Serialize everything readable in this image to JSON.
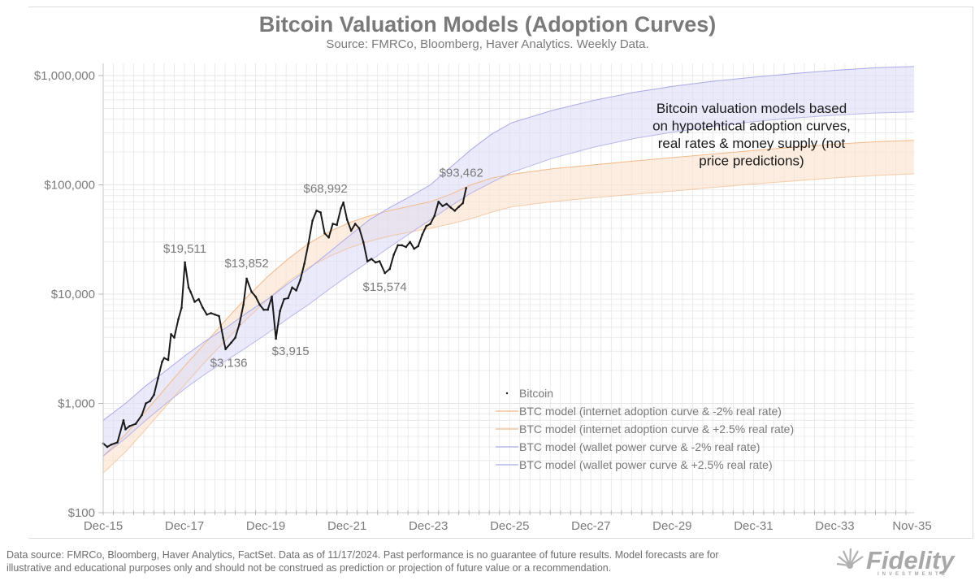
{
  "header": {
    "title": "Bitcoin Valuation Models (Adoption Curves)",
    "subtitle": "Source: FMRCo, Bloomberg, Haver Analytics. Weekly Data."
  },
  "footer": {
    "text_line1": "Data source: FMRCo, Bloomberg, Haver Analytics, FactSet. Data as of 11/17/2024. Past performance is no guarantee of future results. Model forecasts are for",
    "text_line2": "illustrative and educational purposes only and should not be construed as prediction or projection of future value or a recommendation.",
    "logo_text": "Fidelity",
    "logo_subtext": "INVESTMENTS",
    "logo_icon": "sunburst-icon"
  },
  "colors": {
    "bitcoin": "#1a1a1a",
    "internet_band_fill": "#fbe3cf",
    "internet_line": "#f3b98a",
    "wallet_band_fill": "#dcdcf8",
    "wallet_line": "#a9a9e8",
    "grid": "#e6e6e6",
    "axis_text": "#7a7a7a"
  },
  "chart_data": {
    "type": "line",
    "title": "Bitcoin Valuation Models (Adoption Curves)",
    "subtitle": "Source: FMRCo, Bloomberg, Haver Analytics. Weekly Data.",
    "xlabel": "",
    "ylabel": "",
    "yscale": "log",
    "ylim": [
      100,
      1000000
    ],
    "xlim": [
      2015.95,
      2035.9
    ],
    "grid": true,
    "legend_position": "bottom-center",
    "y_ticks": [
      {
        "value": 100,
        "label": "$100"
      },
      {
        "value": 1000,
        "label": "$1,000"
      },
      {
        "value": 10000,
        "label": "$10,000"
      },
      {
        "value": 100000,
        "label": "$100,000"
      },
      {
        "value": 1000000,
        "label": "$1,000,000"
      }
    ],
    "x_ticks": [
      {
        "value": 2015.95,
        "label": "Dec-15"
      },
      {
        "value": 2017.95,
        "label": "Dec-17"
      },
      {
        "value": 2019.95,
        "label": "Dec-19"
      },
      {
        "value": 2021.95,
        "label": "Dec-21"
      },
      {
        "value": 2023.95,
        "label": "Dec-23"
      },
      {
        "value": 2025.95,
        "label": "Dec-25"
      },
      {
        "value": 2027.95,
        "label": "Dec-27"
      },
      {
        "value": 2029.95,
        "label": "Dec-29"
      },
      {
        "value": 2031.95,
        "label": "Dec-31"
      },
      {
        "value": 2033.95,
        "label": "Dec-33"
      },
      {
        "value": 2035.85,
        "label": "Nov-35"
      }
    ],
    "legend": [
      {
        "key": "bitcoin",
        "label": "Bitcoin",
        "marker": "dot"
      },
      {
        "key": "internet_neg2",
        "label": "BTC model (internet adoption curve & -2% real rate)",
        "marker": "line"
      },
      {
        "key": "internet_pos25",
        "label": "BTC model (internet adoption curve & +2.5% real rate)",
        "marker": "line"
      },
      {
        "key": "wallet_neg2",
        "label": "BTC model (wallet power curve & -2% real rate)",
        "marker": "line"
      },
      {
        "key": "wallet_pos25",
        "label": "BTC model (wallet power curve & +2.5% real rate)",
        "marker": "line"
      }
    ],
    "annotation": "Bitcoin valuation models based on hypotehtical adoption curves, real rates & money supply (not price predictions)",
    "data_labels": [
      {
        "x": 2017.96,
        "y": 19511,
        "label": "$19,511"
      },
      {
        "x": 2018.96,
        "y": 3136,
        "label": "$3,136"
      },
      {
        "x": 2019.48,
        "y": 13852,
        "label": "$13,852"
      },
      {
        "x": 2020.2,
        "y": 3915,
        "label": "$3,915"
      },
      {
        "x": 2021.86,
        "y": 68992,
        "label": "$68,992"
      },
      {
        "x": 2022.88,
        "y": 15574,
        "label": "$15,574"
      },
      {
        "x": 2024.88,
        "y": 93462,
        "label": "$93,462"
      }
    ],
    "series": [
      {
        "name": "BTC model (wallet power curve & -2% real rate)",
        "key": "wallet_neg2",
        "x": [
          2015.95,
          2016.5,
          2017.0,
          2017.5,
          2018.0,
          2018.5,
          2019.0,
          2019.5,
          2020.0,
          2020.5,
          2021.0,
          2021.5,
          2022.0,
          2022.5,
          2023.0,
          2023.5,
          2024.0,
          2024.5,
          2025.0,
          2025.5,
          2026.0,
          2027.0,
          2028.0,
          2029.0,
          2030.0,
          2031.0,
          2032.0,
          2033.0,
          2034.0,
          2035.0,
          2035.9
        ],
        "values": [
          700,
          1000,
          1450,
          2000,
          2800,
          3800,
          5000,
          6800,
          9000,
          12500,
          17000,
          24000,
          34000,
          48000,
          62000,
          78000,
          100000,
          145000,
          210000,
          290000,
          370000,
          480000,
          590000,
          700000,
          800000,
          890000,
          970000,
          1050000,
          1120000,
          1180000,
          1210000
        ]
      },
      {
        "name": "BTC model (wallet power curve & +2.5% real rate)",
        "key": "wallet_pos25",
        "x": [
          2015.95,
          2016.5,
          2017.0,
          2017.5,
          2018.0,
          2018.5,
          2019.0,
          2019.5,
          2020.0,
          2020.5,
          2021.0,
          2021.5,
          2022.0,
          2022.5,
          2023.0,
          2023.5,
          2024.0,
          2024.5,
          2025.0,
          2025.5,
          2026.0,
          2027.0,
          2028.0,
          2029.0,
          2030.0,
          2031.0,
          2032.0,
          2033.0,
          2034.0,
          2035.0,
          2035.9
        ],
        "values": [
          330,
          480,
          700,
          1000,
          1400,
          1900,
          2500,
          3300,
          4400,
          6000,
          8000,
          11000,
          15000,
          20000,
          27000,
          36000,
          48000,
          64000,
          84000,
          105000,
          130000,
          175000,
          220000,
          265000,
          305000,
          345000,
          380000,
          410000,
          435000,
          455000,
          465000
        ]
      },
      {
        "name": "BTC model (internet adoption curve & -2% real rate)",
        "key": "internet_neg2",
        "x": [
          2015.95,
          2016.5,
          2017.0,
          2017.5,
          2018.0,
          2018.5,
          2019.0,
          2019.5,
          2020.0,
          2020.5,
          2021.0,
          2021.5,
          2022.0,
          2022.5,
          2023.0,
          2023.5,
          2024.0,
          2024.5,
          2025.0,
          2025.5,
          2026.0,
          2027.0,
          2028.0,
          2029.0,
          2030.0,
          2031.0,
          2032.0,
          2033.0,
          2034.0,
          2035.0,
          2035.9
        ],
        "values": [
          330,
          520,
          850,
          1400,
          2300,
          3700,
          6000,
          9500,
          14500,
          21000,
          29000,
          37000,
          45000,
          52000,
          58000,
          64000,
          70000,
          82000,
          100000,
          115000,
          125000,
          140000,
          152000,
          165000,
          178000,
          192000,
          207000,
          222000,
          236000,
          248000,
          255000
        ]
      },
      {
        "name": "BTC model (internet adoption curve & +2.5% real rate)",
        "key": "internet_pos25",
        "x": [
          2015.95,
          2016.5,
          2017.0,
          2017.5,
          2018.0,
          2018.5,
          2019.0,
          2019.5,
          2020.0,
          2020.5,
          2021.0,
          2021.5,
          2022.0,
          2022.5,
          2023.0,
          2023.5,
          2024.0,
          2024.5,
          2025.0,
          2025.5,
          2026.0,
          2027.0,
          2028.0,
          2029.0,
          2030.0,
          2031.0,
          2032.0,
          2033.0,
          2034.0,
          2035.0,
          2035.9
        ],
        "values": [
          230,
          360,
          580,
          950,
          1550,
          2500,
          3900,
          6000,
          9000,
          13000,
          17500,
          22000,
          26500,
          30500,
          34000,
          37000,
          40000,
          44000,
          49000,
          56000,
          63000,
          70000,
          76000,
          82000,
          88000,
          95000,
          102000,
          109000,
          116000,
          122000,
          126000
        ]
      },
      {
        "name": "Bitcoin",
        "key": "bitcoin",
        "x": [
          2015.95,
          2016.05,
          2016.15,
          2016.3,
          2016.45,
          2016.5,
          2016.6,
          2016.75,
          2016.9,
          2017.0,
          2017.1,
          2017.2,
          2017.3,
          2017.4,
          2017.45,
          2017.55,
          2017.62,
          2017.7,
          2017.8,
          2017.88,
          2017.96,
          2018.05,
          2018.1,
          2018.2,
          2018.3,
          2018.4,
          2018.5,
          2018.6,
          2018.7,
          2018.8,
          2018.9,
          2018.96,
          2019.1,
          2019.2,
          2019.3,
          2019.4,
          2019.48,
          2019.6,
          2019.7,
          2019.8,
          2019.9,
          2020.0,
          2020.1,
          2020.2,
          2020.3,
          2020.4,
          2020.5,
          2020.6,
          2020.7,
          2020.8,
          2020.9,
          2021.0,
          2021.1,
          2021.2,
          2021.3,
          2021.4,
          2021.5,
          2021.6,
          2021.7,
          2021.8,
          2021.86,
          2021.95,
          2022.05,
          2022.15,
          2022.25,
          2022.35,
          2022.45,
          2022.55,
          2022.65,
          2022.75,
          2022.88,
          2023.0,
          2023.1,
          2023.2,
          2023.3,
          2023.4,
          2023.5,
          2023.6,
          2023.7,
          2023.8,
          2023.9,
          2024.0,
          2024.1,
          2024.2,
          2024.3,
          2024.4,
          2024.5,
          2024.6,
          2024.7,
          2024.8,
          2024.88
        ],
        "values": [
          430,
          400,
          420,
          440,
          700,
          580,
          620,
          650,
          780,
          1000,
          1050,
          1200,
          1700,
          2400,
          2600,
          2500,
          4300,
          4000,
          5900,
          7500,
          19511,
          11500,
          10500,
          8500,
          9000,
          7500,
          6500,
          6700,
          6500,
          6300,
          4000,
          3136,
          3600,
          4000,
          5300,
          8000,
          13852,
          10500,
          9500,
          8000,
          7200,
          7200,
          9500,
          3915,
          7000,
          9000,
          9200,
          11500,
          10800,
          13500,
          19000,
          29000,
          47000,
          58000,
          56000,
          36000,
          33000,
          44000,
          43000,
          61000,
          68992,
          48000,
          38000,
          44000,
          40000,
          30000,
          20000,
          21000,
          19500,
          20000,
          15574,
          17000,
          23000,
          28000,
          28000,
          27000,
          30000,
          26000,
          27500,
          35000,
          42000,
          44000,
          52000,
          70000,
          64000,
          67000,
          62000,
          58000,
          63000,
          68000,
          93462
        ]
      }
    ]
  }
}
